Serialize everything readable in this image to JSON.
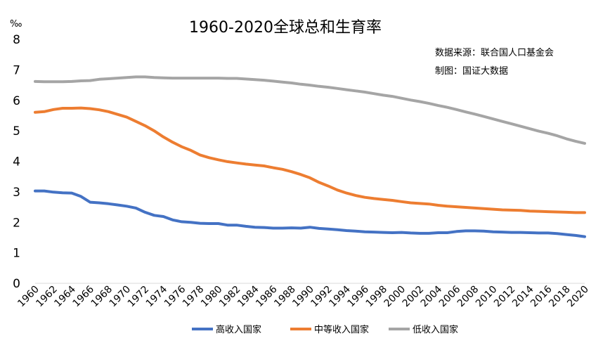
{
  "chart_data": {
    "type": "line",
    "title": "1960-2020全球总和生育率",
    "unit": "‰",
    "source": "数据来源：联合国人口基金会",
    "credit": "制图：国证大数据",
    "xlabel": "",
    "ylabel": "",
    "ylim": [
      0,
      8
    ],
    "yticks": [
      0,
      1,
      2,
      3,
      4,
      5,
      6,
      7,
      8
    ],
    "xticks": [
      "1960",
      "1962",
      "1964",
      "1966",
      "1968",
      "1970",
      "1972",
      "1974",
      "1976",
      "1978",
      "1980",
      "1982",
      "1984",
      "1986",
      "1988",
      "1990",
      "1992",
      "1994",
      "1996",
      "1998",
      "2000",
      "2002",
      "2004",
      "2006",
      "2008",
      "2010",
      "2012",
      "2014",
      "2016",
      "2018",
      "2020"
    ],
    "x_start": 1960,
    "x_end": 2020,
    "grid": false,
    "legend_position": "bottom",
    "series": [
      {
        "name": "高收入国家",
        "color": "#4472C4",
        "values": [
          3.03,
          3.03,
          2.99,
          2.97,
          2.96,
          2.85,
          2.66,
          2.64,
          2.61,
          2.57,
          2.53,
          2.47,
          2.33,
          2.23,
          2.19,
          2.08,
          2.02,
          2.0,
          1.97,
          1.96,
          1.96,
          1.91,
          1.91,
          1.87,
          1.84,
          1.83,
          1.81,
          1.81,
          1.82,
          1.81,
          1.84,
          1.8,
          1.78,
          1.76,
          1.73,
          1.71,
          1.69,
          1.68,
          1.67,
          1.66,
          1.67,
          1.65,
          1.64,
          1.64,
          1.66,
          1.66,
          1.7,
          1.72,
          1.72,
          1.71,
          1.69,
          1.68,
          1.67,
          1.67,
          1.66,
          1.65,
          1.65,
          1.63,
          1.6,
          1.57,
          1.53
        ]
      },
      {
        "name": "中等收入国家",
        "color": "#ED7D31",
        "values": [
          5.61,
          5.63,
          5.7,
          5.74,
          5.74,
          5.75,
          5.73,
          5.69,
          5.63,
          5.54,
          5.45,
          5.31,
          5.17,
          5.0,
          4.8,
          4.63,
          4.48,
          4.36,
          4.21,
          4.12,
          4.05,
          3.99,
          3.95,
          3.91,
          3.88,
          3.85,
          3.79,
          3.74,
          3.66,
          3.57,
          3.46,
          3.31,
          3.19,
          3.06,
          2.96,
          2.88,
          2.82,
          2.78,
          2.75,
          2.72,
          2.68,
          2.64,
          2.62,
          2.6,
          2.56,
          2.53,
          2.51,
          2.49,
          2.47,
          2.45,
          2.43,
          2.41,
          2.4,
          2.39,
          2.37,
          2.36,
          2.35,
          2.34,
          2.33,
          2.32,
          2.32
        ]
      },
      {
        "name": "低收入国家",
        "color": "#A5A5A5",
        "values": [
          6.62,
          6.61,
          6.61,
          6.61,
          6.62,
          6.64,
          6.65,
          6.69,
          6.71,
          6.73,
          6.75,
          6.77,
          6.77,
          6.75,
          6.74,
          6.73,
          6.73,
          6.73,
          6.73,
          6.73,
          6.73,
          6.72,
          6.72,
          6.7,
          6.68,
          6.66,
          6.63,
          6.6,
          6.57,
          6.53,
          6.5,
          6.46,
          6.43,
          6.39,
          6.35,
          6.31,
          6.27,
          6.22,
          6.17,
          6.13,
          6.07,
          6.01,
          5.96,
          5.9,
          5.83,
          5.77,
          5.7,
          5.62,
          5.55,
          5.47,
          5.39,
          5.31,
          5.23,
          5.15,
          5.07,
          4.99,
          4.92,
          4.84,
          4.74,
          4.66,
          4.59
        ]
      }
    ]
  }
}
